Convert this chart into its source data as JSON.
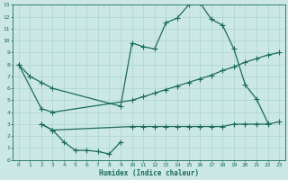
{
  "xlabel": "Humidex (Indice chaleur)",
  "bg_color": "#cce8e4",
  "line_color": "#1a6b5a",
  "grid_color": "#aad4ce",
  "xlim": [
    -0.5,
    23.5
  ],
  "ylim": [
    0,
    13
  ],
  "xticks": [
    0,
    1,
    2,
    3,
    4,
    5,
    6,
    7,
    8,
    9,
    10,
    11,
    12,
    13,
    14,
    15,
    16,
    17,
    18,
    19,
    20,
    21,
    22,
    23
  ],
  "yticks": [
    0,
    1,
    2,
    3,
    4,
    5,
    6,
    7,
    8,
    9,
    10,
    11,
    12,
    13
  ],
  "series": [
    {
      "x": [
        0,
        1,
        2,
        3,
        9,
        10,
        11,
        12,
        13,
        14,
        15,
        16,
        17,
        18,
        19,
        20,
        21,
        22
      ],
      "y": [
        8.0,
        7.0,
        6.5,
        6.0,
        4.5,
        9.8,
        9.5,
        9.3,
        11.5,
        11.9,
        13.0,
        13.2,
        11.8,
        11.3,
        9.3,
        6.3,
        5.1,
        3.1
      ]
    },
    {
      "x": [
        0,
        2,
        3,
        10,
        11,
        12,
        13,
        14,
        15,
        16,
        17,
        18,
        19,
        20,
        21,
        22,
        23
      ],
      "y": [
        8.0,
        4.3,
        4.0,
        5.0,
        5.3,
        5.6,
        5.9,
        6.2,
        6.5,
        6.8,
        7.1,
        7.5,
        7.8,
        8.2,
        8.5,
        8.8,
        9.0
      ]
    },
    {
      "x": [
        2,
        3,
        4,
        5,
        6,
        7,
        8,
        9
      ],
      "y": [
        3.0,
        2.5,
        1.5,
        0.8,
        0.8,
        0.7,
        0.5,
        1.5
      ]
    },
    {
      "x": [
        2,
        3,
        10,
        11,
        12,
        13,
        14,
        15,
        16,
        17,
        18,
        19,
        20,
        21,
        22,
        23
      ],
      "y": [
        3.0,
        2.5,
        2.8,
        2.8,
        2.8,
        2.8,
        2.8,
        2.8,
        2.8,
        2.8,
        2.8,
        3.0,
        3.0,
        3.0,
        3.0,
        3.2
      ]
    }
  ]
}
